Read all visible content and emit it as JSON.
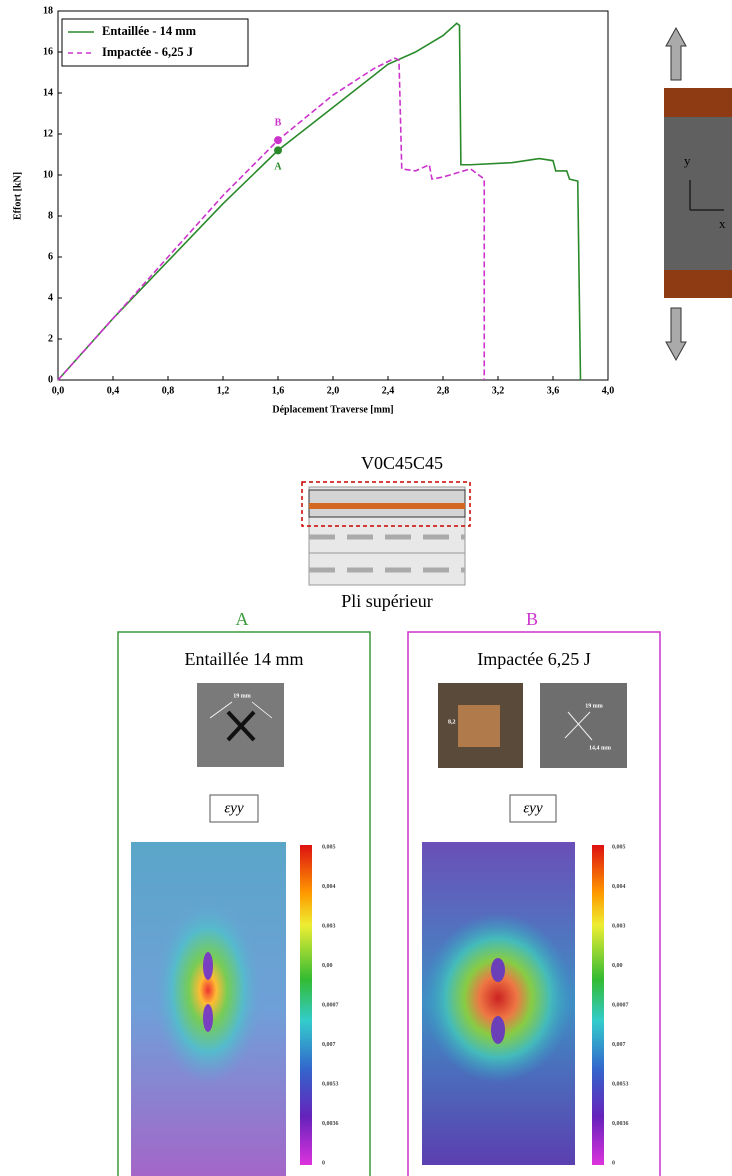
{
  "chart_data": {
    "type": "line",
    "xlabel": "Déplacement Traverse [mm]",
    "ylabel": "Effort [kN]",
    "xlim": [
      0,
      4
    ],
    "ylim": [
      0,
      18
    ],
    "xticks": [
      {
        "value": 0,
        "label": "0,0"
      },
      {
        "value": 0.4,
        "label": "0,4"
      },
      {
        "value": 0.8,
        "label": "0,8"
      },
      {
        "value": 1.2,
        "label": "1,2"
      },
      {
        "value": 1.6,
        "label": "1,6"
      },
      {
        "value": 2.0,
        "label": "2,0"
      },
      {
        "value": 2.4,
        "label": "2,4"
      },
      {
        "value": 2.8,
        "label": "2,8"
      },
      {
        "value": 3.2,
        "label": "3,2"
      },
      {
        "value": 3.6,
        "label": "3,6"
      },
      {
        "value": 4.0,
        "label": "4,0"
      }
    ],
    "yticks": [
      0,
      2,
      4,
      6,
      8,
      10,
      12,
      14,
      16,
      18
    ],
    "legend": "upper left",
    "series": [
      {
        "name": "Entaillée - 14 mm",
        "color": "#2a8a2a",
        "linestyle": "solid",
        "x": [
          0,
          0.4,
          0.8,
          1.2,
          1.6,
          2.0,
          2.4,
          2.6,
          2.8,
          2.9,
          2.92,
          2.93,
          3.0,
          3.3,
          3.5,
          3.6,
          3.62,
          3.7,
          3.72,
          3.78,
          3.8
        ],
        "values": [
          0,
          3.0,
          5.8,
          8.6,
          11.2,
          13.3,
          15.4,
          16.0,
          16.8,
          17.4,
          17.3,
          10.5,
          10.5,
          10.6,
          10.8,
          10.7,
          10.2,
          10.2,
          9.8,
          9.7,
          0
        ]
      },
      {
        "name": "Impactée - 6,25 J",
        "color": "#cc33cc",
        "linestyle": "dashed",
        "x": [
          0,
          0.4,
          0.8,
          1.2,
          1.6,
          2.0,
          2.3,
          2.45,
          2.48,
          2.5,
          2.6,
          2.7,
          2.72,
          2.8,
          3.0,
          3.1,
          3.1
        ],
        "values": [
          0,
          3.0,
          6.0,
          9.0,
          11.7,
          13.9,
          15.2,
          15.7,
          15.6,
          10.3,
          10.2,
          10.5,
          9.8,
          9.9,
          10.3,
          9.8,
          0
        ]
      }
    ],
    "annotations": [
      {
        "text": "A",
        "x": 1.6,
        "y": 11.2,
        "color": "#2a8a2a"
      },
      {
        "text": "B",
        "x": 1.6,
        "y": 11.7,
        "color": "#cc33cc"
      }
    ]
  },
  "specimen": {
    "y_label": "y",
    "x_label": "x"
  },
  "layup": {
    "title": "V0C45C45",
    "caption": "Pli supérieur"
  },
  "panels": [
    {
      "letter": "A",
      "title": "Entaillée  14 mm",
      "photo_labels": [
        "19 mm"
      ],
      "strain_label": "εyy",
      "colorbar_labels": [
        "0,005",
        "0,004",
        "0,003",
        "0,00",
        "0,0007",
        "0,007",
        "0,0053",
        "0,0036",
        "0"
      ]
    },
    {
      "letter": "B",
      "title": "Impactée  6,25 J",
      "photo_labels": [
        "8,2",
        "19 mm",
        "14,4 mm"
      ],
      "strain_label": "εyy",
      "colorbar_labels": [
        "0,005",
        "0,004",
        "0,003",
        "0,00",
        "0,0007",
        "0,007",
        "0,0053",
        "0,0036",
        "0"
      ]
    }
  ]
}
